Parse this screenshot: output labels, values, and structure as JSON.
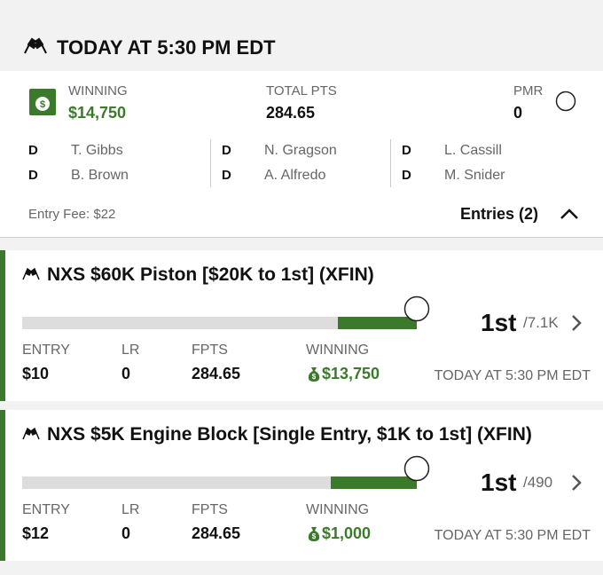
{
  "header": {
    "title": "TODAY AT 5:30 PM EDT"
  },
  "summary": {
    "winning_label": "WINNING",
    "winning_value": "$14,750",
    "points_label": "TOTAL PTS",
    "points_value": "284.65",
    "pmr_label": "PMR",
    "pmr_value": "0"
  },
  "lineup": [
    [
      {
        "pos": "D",
        "name": "T. Gibbs"
      },
      {
        "pos": "D",
        "name": "B. Brown"
      }
    ],
    [
      {
        "pos": "D",
        "name": "N. Gragson"
      },
      {
        "pos": "D",
        "name": "A. Alfredo"
      }
    ],
    [
      {
        "pos": "D",
        "name": "L. Cassill"
      },
      {
        "pos": "D",
        "name": "M. Snider"
      }
    ]
  ],
  "entry_fee": "Entry Fee: $22",
  "entries_toggle": "Entries (2)",
  "contests": [
    {
      "name": "NXS $60K Piston [$20K to 1st] (XFIN)",
      "rank": "1st",
      "field": "/7.1K",
      "stats": [
        {
          "label": "ENTRY",
          "value": "$10"
        },
        {
          "label": "LR",
          "value": "0"
        },
        {
          "label": "FPTS",
          "value": "284.65"
        },
        {
          "label": "WINNING",
          "value": "$13,750"
        }
      ],
      "time": "TODAY AT 5:30 PM EDT"
    },
    {
      "name": "NXS $5K Engine Block [Single Entry, $1K to 1st] (XFIN)",
      "rank": "1st",
      "field": "/490",
      "stats": [
        {
          "label": "ENTRY",
          "value": "$12"
        },
        {
          "label": "LR",
          "value": "0"
        },
        {
          "label": "FPTS",
          "value": "284.65"
        },
        {
          "label": "WINNING",
          "value": "$1,000"
        }
      ],
      "time": "TODAY AT 5:30 PM EDT"
    }
  ]
}
